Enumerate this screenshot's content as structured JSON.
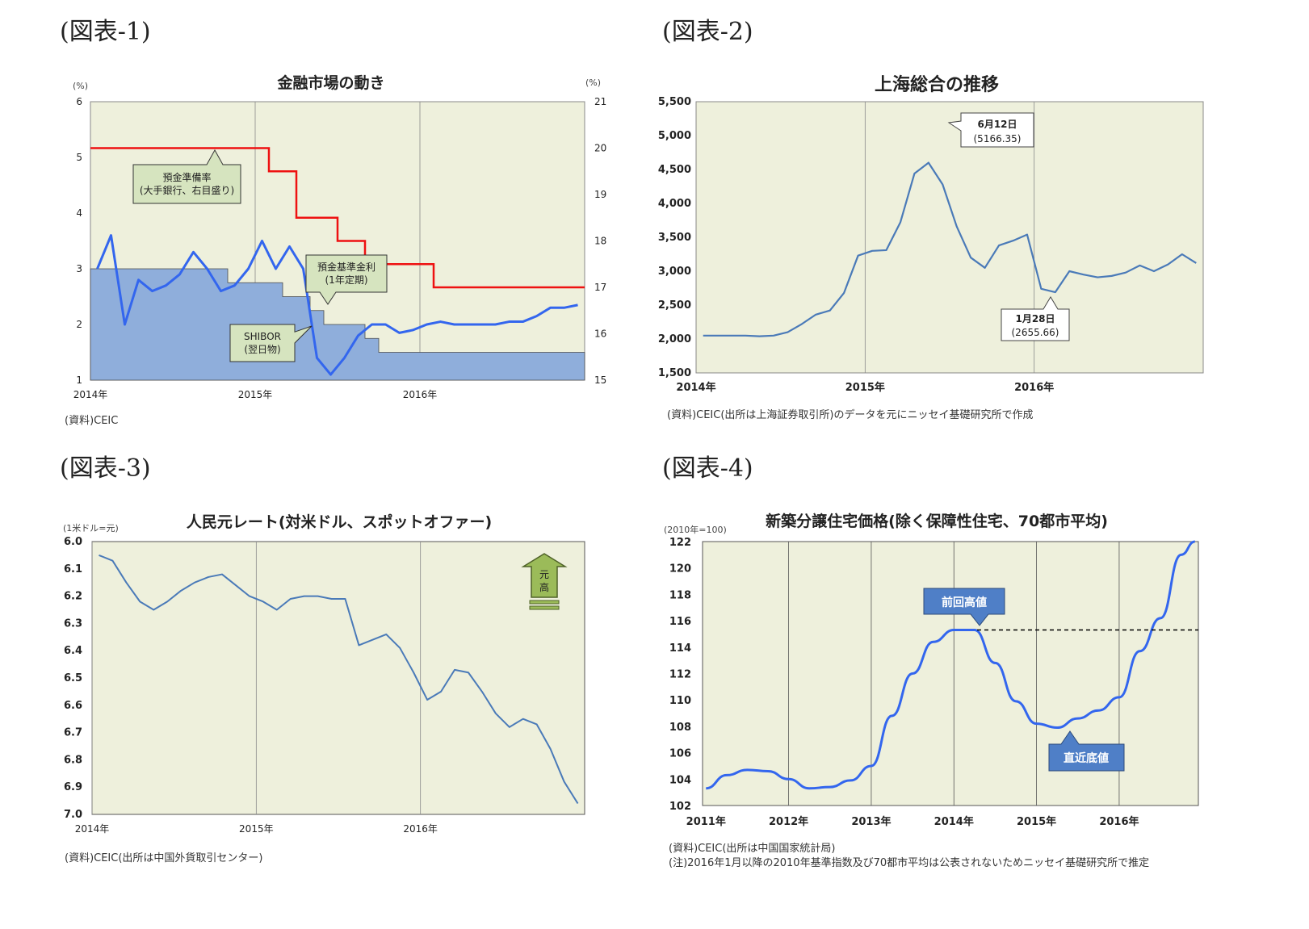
{
  "labels": {
    "fig1": "(図表-1)",
    "fig2": "(図表-2)",
    "fig3": "(図表-3)",
    "fig4": "(図表-4)"
  },
  "colors": {
    "plot_bg": "#eef0dc",
    "blue_line": "#3366ee",
    "area_fill": "#8faedb",
    "red_line": "#ee1111",
    "callout_green": "#d6e4bf",
    "callout_blue": "#4f7fc7",
    "fx_line": "#4a7ab8"
  },
  "c1": {
    "title": "金融市場の動き",
    "unit_left": "(%)",
    "unit_right": "(%)",
    "source": "(資料)CEIC",
    "callout_rrr_1": "預金準備率",
    "callout_rrr_2": "(大手銀行、右目盛り)",
    "callout_dep_1": "預金基準金利",
    "callout_dep_2": "(1年定期)",
    "callout_sh_1": "SHIBOR",
    "callout_sh_2": "(翌日物)"
  },
  "c2": {
    "title": "上海総合の推移",
    "source": "(資料)CEIC(出所は上海証券取引所)のデータを元にニッセイ基礎研究所で作成",
    "peak_1": "6月12日",
    "peak_2": "(5166.35)",
    "low_1": "1月28日",
    "low_2": "(2655.66)"
  },
  "c3": {
    "title": "人民元レート(対米ドル、スポットオファー)",
    "unit": "(1米ドル=元)",
    "source": "(資料)CEIC(出所は中国外貨取引センター)",
    "arrow_label": "元高"
  },
  "c4": {
    "title": "新築分譲住宅価格(除く保障性住宅、70都市平均)",
    "unit": "(2010年=100)",
    "source1": "(資料)CEIC(出所は中国国家統計局)",
    "source2": "(注)2016年1月以降の2010年基準指数及び70都市平均は公表されないためニッセイ基礎研究所で推定",
    "callout_high": "前回高値",
    "callout_low": "直近底値"
  },
  "chart_data": [
    {
      "type": "line",
      "title": "金融市場の動き",
      "x": [
        "2014-01",
        "2014-02",
        "2014-03",
        "2014-04",
        "2014-05",
        "2014-06",
        "2014-07",
        "2014-08",
        "2014-09",
        "2014-10",
        "2014-11",
        "2014-12",
        "2015-01",
        "2015-02",
        "2015-03",
        "2015-04",
        "2015-05",
        "2015-06",
        "2015-07",
        "2015-08",
        "2015-09",
        "2015-10",
        "2015-11",
        "2015-12",
        "2016-01",
        "2016-02",
        "2016-03",
        "2016-04",
        "2016-05",
        "2016-06",
        "2016-07",
        "2016-08",
        "2016-09",
        "2016-10",
        "2016-11",
        "2016-12"
      ],
      "x_ticks": [
        "2014年",
        "2015年",
        "2016年"
      ],
      "ylim_left": [
        1,
        6
      ],
      "yticks_left": [
        1,
        2,
        3,
        4,
        5,
        6
      ],
      "ylim_right": [
        15,
        21
      ],
      "yticks_right": [
        15,
        16,
        17,
        18,
        19,
        20,
        21
      ],
      "series": [
        {
          "name": "SHIBOR(翌日物)",
          "axis": "left",
          "values": [
            3.0,
            3.6,
            2.0,
            2.8,
            2.6,
            2.7,
            2.9,
            3.3,
            3.0,
            2.6,
            2.7,
            3.0,
            3.5,
            3.0,
            3.4,
            3.0,
            1.4,
            1.1,
            1.4,
            1.8,
            2.0,
            2.0,
            1.85,
            1.9,
            2.0,
            2.05,
            2.0,
            2.0,
            2.0,
            2.0,
            2.05,
            2.05,
            2.15,
            2.3,
            2.3,
            2.35
          ]
        },
        {
          "name": "預金基準金利(1年定期)",
          "axis": "left",
          "values": [
            3.0,
            3.0,
            3.0,
            3.0,
            3.0,
            3.0,
            3.0,
            3.0,
            3.0,
            3.0,
            2.75,
            2.75,
            2.75,
            2.75,
            2.5,
            2.5,
            2.25,
            2.0,
            2.0,
            2.0,
            1.75,
            1.5,
            1.5,
            1.5,
            1.5,
            1.5,
            1.5,
            1.5,
            1.5,
            1.5,
            1.5,
            1.5,
            1.5,
            1.5,
            1.5,
            1.5
          ]
        },
        {
          "name": "預金準備率(大手銀行、右目盛り)",
          "axis": "right",
          "values": [
            20.0,
            20.0,
            20.0,
            20.0,
            20.0,
            20.0,
            20.0,
            20.0,
            20.0,
            20.0,
            20.0,
            20.0,
            20.0,
            19.5,
            19.5,
            18.5,
            18.5,
            18.5,
            18.0,
            18.0,
            17.5,
            17.5,
            17.5,
            17.5,
            17.5,
            17.0,
            17.0,
            17.0,
            17.0,
            17.0,
            17.0,
            17.0,
            17.0,
            17.0,
            17.0,
            17.0
          ]
        }
      ]
    },
    {
      "type": "line",
      "title": "上海総合の推移",
      "x": [
        "2014-01",
        "2014-02",
        "2014-03",
        "2014-04",
        "2014-05",
        "2014-06",
        "2014-07",
        "2014-08",
        "2014-09",
        "2014-10",
        "2014-11",
        "2014-12",
        "2015-01",
        "2015-02",
        "2015-03",
        "2015-04",
        "2015-05",
        "2015-06",
        "2015-07",
        "2015-08",
        "2015-09",
        "2015-10",
        "2015-11",
        "2015-12",
        "2016-01",
        "2016-02",
        "2016-03",
        "2016-04",
        "2016-05",
        "2016-06",
        "2016-07",
        "2016-08",
        "2016-09",
        "2016-10",
        "2016-11",
        "2016-12"
      ],
      "x_ticks": [
        "2014年",
        "2015年",
        "2016年"
      ],
      "ylim": [
        1500,
        5500
      ],
      "yticks": [
        1500,
        2000,
        2500,
        3000,
        3500,
        4000,
        4500,
        5000,
        5500
      ],
      "series": [
        {
          "values": [
            2050,
            2050,
            2050,
            2050,
            2040,
            2050,
            2100,
            2220,
            2360,
            2420,
            2680,
            3230,
            3300,
            3310,
            3720,
            4440,
            4600,
            4280,
            3660,
            3200,
            3050,
            3380,
            3450,
            3540,
            2740,
            2690,
            3000,
            2950,
            2910,
            2930,
            2980,
            3085,
            3000,
            3100,
            3250,
            3120
          ]
        }
      ],
      "annotations": [
        "6月12日 (5166.35)",
        "1月28日 (2655.66)"
      ]
    },
    {
      "type": "line",
      "title": "人民元レート(対米ドル、スポットオファー)",
      "x": [
        "2014-01",
        "2014-02",
        "2014-03",
        "2014-04",
        "2014-05",
        "2014-06",
        "2014-07",
        "2014-08",
        "2014-09",
        "2014-10",
        "2014-11",
        "2014-12",
        "2015-01",
        "2015-02",
        "2015-03",
        "2015-04",
        "2015-05",
        "2015-06",
        "2015-07",
        "2015-08",
        "2015-09",
        "2015-10",
        "2015-11",
        "2015-12",
        "2016-01",
        "2016-02",
        "2016-03",
        "2016-04",
        "2016-05",
        "2016-06",
        "2016-07",
        "2016-08",
        "2016-09",
        "2016-10",
        "2016-11",
        "2016-12"
      ],
      "x_ticks": [
        "2014年",
        "2015年",
        "2016年"
      ],
      "ylim": [
        7.0,
        6.0
      ],
      "yticks": [
        6.0,
        6.1,
        6.2,
        6.3,
        6.4,
        6.5,
        6.6,
        6.7,
        6.8,
        6.9,
        7.0
      ],
      "y_inverted": true,
      "series": [
        {
          "values": [
            6.05,
            6.07,
            6.15,
            6.22,
            6.25,
            6.22,
            6.18,
            6.15,
            6.13,
            6.12,
            6.16,
            6.2,
            6.22,
            6.25,
            6.21,
            6.2,
            6.2,
            6.21,
            6.21,
            6.38,
            6.36,
            6.34,
            6.39,
            6.48,
            6.58,
            6.55,
            6.47,
            6.48,
            6.55,
            6.63,
            6.68,
            6.65,
            6.67,
            6.76,
            6.88,
            6.96
          ]
        }
      ]
    },
    {
      "type": "line",
      "title": "新築分譲住宅価格(除く保障性住宅、70都市平均)",
      "x": [
        "2011-01",
        "2011-04",
        "2011-07",
        "2011-10",
        "2012-01",
        "2012-04",
        "2012-07",
        "2012-10",
        "2013-01",
        "2013-04",
        "2013-07",
        "2013-10",
        "2014-01",
        "2014-04",
        "2014-07",
        "2014-10",
        "2015-01",
        "2015-04",
        "2015-07",
        "2015-10",
        "2016-01",
        "2016-04",
        "2016-07",
        "2016-10",
        "2016-12"
      ],
      "x_ticks": [
        "2011年",
        "2012年",
        "2013年",
        "2014年",
        "2015年",
        "2016年"
      ],
      "ylim": [
        102,
        122
      ],
      "yticks": [
        102,
        104,
        106,
        108,
        110,
        112,
        114,
        116,
        118,
        120,
        122
      ],
      "series": [
        {
          "values": [
            103.3,
            104.3,
            104.7,
            104.6,
            104.0,
            103.3,
            103.4,
            103.9,
            105.0,
            108.8,
            112.0,
            114.4,
            115.3,
            115.3,
            112.8,
            109.9,
            108.2,
            107.9,
            108.6,
            109.2,
            110.2,
            113.7,
            116.2,
            121.0,
            122.0
          ]
        }
      ],
      "annotations": [
        "前回高値",
        "直近底値"
      ]
    }
  ]
}
